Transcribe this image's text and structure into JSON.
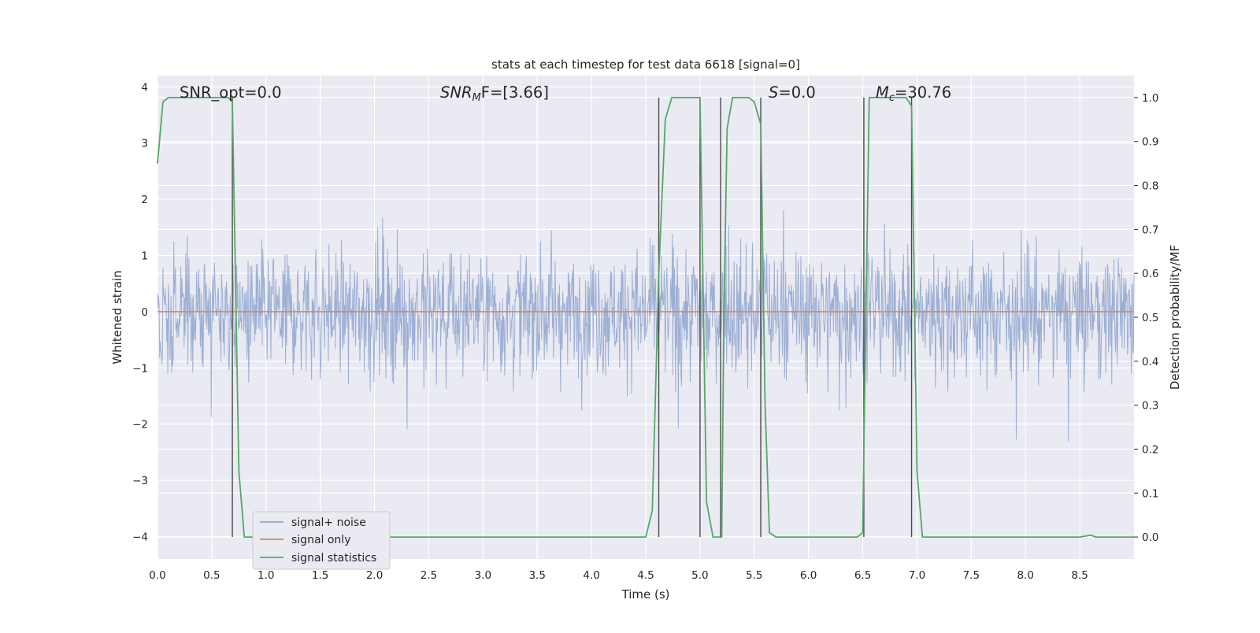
{
  "chart_data": {
    "type": "line",
    "title": "stats at each timestep for test data 6618 [signal=0]",
    "xlabel": "Time (s)",
    "ylabel_left": "Whitened strain",
    "ylabel_right": "Detection probability/MF",
    "xlim": [
      0.0,
      9.0
    ],
    "ylim_left": [
      -4.4,
      4.2
    ],
    "ylim_right": [
      -0.05,
      1.05
    ],
    "x_ticks": [
      "0.0",
      "0.5",
      "1.0",
      "1.5",
      "2.0",
      "2.5",
      "3.0",
      "3.5",
      "4.0",
      "4.5",
      "5.0",
      "5.5",
      "6.0",
      "6.5",
      "7.0",
      "7.5",
      "8.0",
      "8.5"
    ],
    "y_ticks_left": [
      "4",
      "3",
      "2",
      "1",
      "0",
      "−1",
      "−2",
      "−3",
      "−4"
    ],
    "y_ticks_right": [
      "1.0",
      "0.9",
      "0.8",
      "0.7",
      "0.6",
      "0.5",
      "0.4",
      "0.3",
      "0.2",
      "0.1",
      "0.0"
    ],
    "annotations": {
      "snr_opt": "SNR_opt=0.0",
      "snr_mf_main": "SNR",
      "snr_mf_sub": "M",
      "snr_mf_rest": "F=[3.66]",
      "s_main": "S",
      "s_rest": "=0.0",
      "mc_main": "M",
      "mc_sub": "c",
      "mc_rest": "=30.76"
    },
    "legend": {
      "position": "lower-left",
      "entries": [
        {
          "label": "signal+ noise",
          "color": "#8fa4cf"
        },
        {
          "label": "signal only",
          "color": "#dd8452"
        },
        {
          "label": "signal statistics",
          "color": "#55a868"
        }
      ]
    },
    "series": [
      {
        "name": "signal+ noise",
        "axis": "left",
        "description": "noise band approx symmetric around 0, bulk |y|<~1.5, spikes up to ~3.8 and down to ~-4"
      },
      {
        "name": "signal only",
        "axis": "left",
        "x": [
          0.0,
          9.0
        ],
        "y": [
          0.0,
          0.0
        ]
      },
      {
        "name": "signal statistics",
        "axis": "right",
        "x": [
          0.0,
          0.05,
          0.1,
          0.15,
          0.5,
          0.6,
          0.65,
          0.69,
          0.75,
          0.8,
          4.5,
          4.56,
          4.62,
          4.68,
          4.74,
          4.8,
          5.0,
          5.06,
          5.12,
          5.18,
          5.2,
          5.22,
          5.25,
          5.3,
          5.36,
          5.45,
          5.5,
          5.56,
          5.6,
          5.64,
          5.7,
          6.45,
          6.5,
          6.51,
          6.56,
          6.62,
          6.9,
          6.95,
          7.0,
          7.05,
          7.1,
          8.0,
          8.5,
          8.6,
          8.65,
          9.0
        ],
        "y": [
          0.85,
          0.99,
          1.0,
          1.0,
          1.0,
          1.0,
          1.0,
          0.99,
          0.15,
          0.0,
          0.0,
          0.06,
          0.6,
          0.95,
          1.0,
          1.0,
          1.0,
          0.08,
          0.0,
          0.0,
          0.0,
          0.5,
          0.93,
          1.0,
          1.0,
          1.0,
          0.99,
          0.94,
          0.3,
          0.01,
          0.0,
          0.0,
          0.01,
          0.2,
          1.0,
          1.0,
          1.0,
          0.98,
          0.15,
          0.0,
          0.0,
          0.0,
          0.0,
          0.004,
          0.0,
          0.0
        ]
      }
    ],
    "vertical_lines_x": [
      0.69,
      4.62,
      5.0,
      5.19,
      5.56,
      6.51,
      6.95
    ]
  }
}
